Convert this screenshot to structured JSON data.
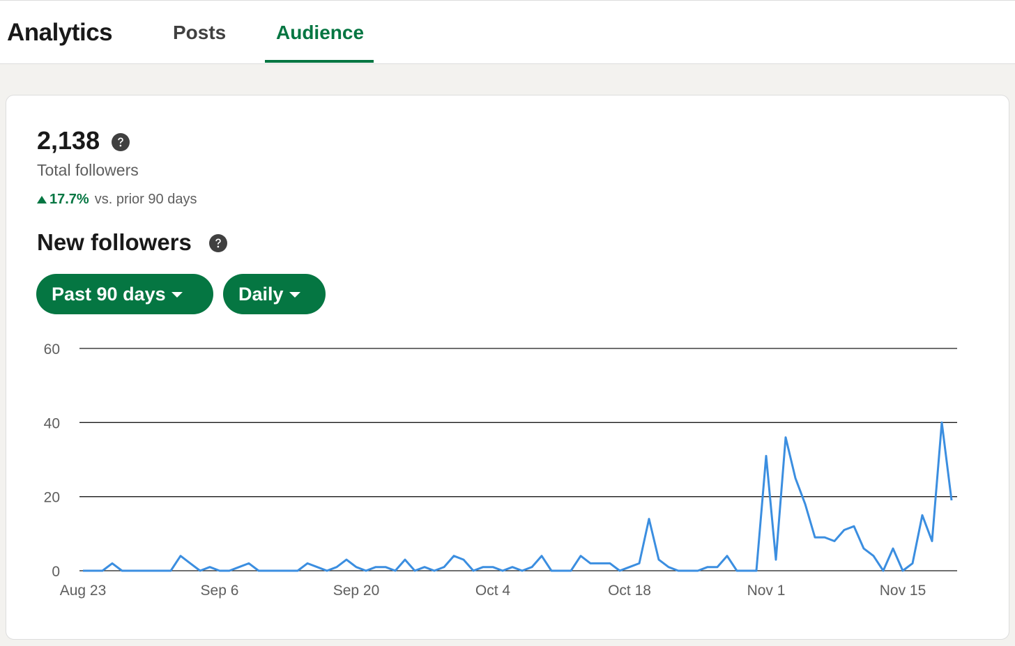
{
  "header": {
    "title": "Analytics",
    "tabs": [
      {
        "label": "Posts",
        "active": false
      },
      {
        "label": "Audience",
        "active": true
      }
    ],
    "accent_color": "#057642"
  },
  "followers": {
    "total": "2,138",
    "total_label": "Total followers",
    "change_pct": "17.7%",
    "change_text": "vs. prior 90 days"
  },
  "new_followers": {
    "title": "New followers",
    "range_label": "Past 90 days",
    "interval_label": "Daily"
  },
  "chart_data": {
    "type": "line",
    "ylim": [
      0,
      60
    ],
    "yticks": [
      0,
      20,
      40,
      60
    ],
    "xtick_labels": [
      "Aug 23",
      "Sep 6",
      "Sep 20",
      "Oct 4",
      "Oct 18",
      "Nov 1",
      "Nov 15"
    ],
    "xtick_indices": [
      0,
      14,
      28,
      42,
      56,
      70,
      84
    ],
    "series": [
      {
        "color": "#3b8ee0",
        "values": [
          0,
          0,
          0,
          2,
          0,
          0,
          0,
          0,
          0,
          0,
          4,
          2,
          0,
          1,
          0,
          0,
          1,
          2,
          0,
          0,
          0,
          0,
          0,
          2,
          1,
          0,
          1,
          3,
          1,
          0,
          1,
          1,
          0,
          3,
          0,
          1,
          0,
          1,
          4,
          3,
          0,
          1,
          1,
          0,
          1,
          0,
          1,
          4,
          0,
          0,
          0,
          4,
          2,
          2,
          2,
          0,
          1,
          2,
          14,
          3,
          1,
          0,
          0,
          0,
          1,
          1,
          4,
          0,
          0,
          0,
          31,
          3,
          36,
          25,
          18,
          9,
          9,
          8,
          11,
          12,
          6,
          4,
          0,
          6,
          0,
          2,
          15,
          8,
          40,
          19
        ]
      }
    ]
  }
}
